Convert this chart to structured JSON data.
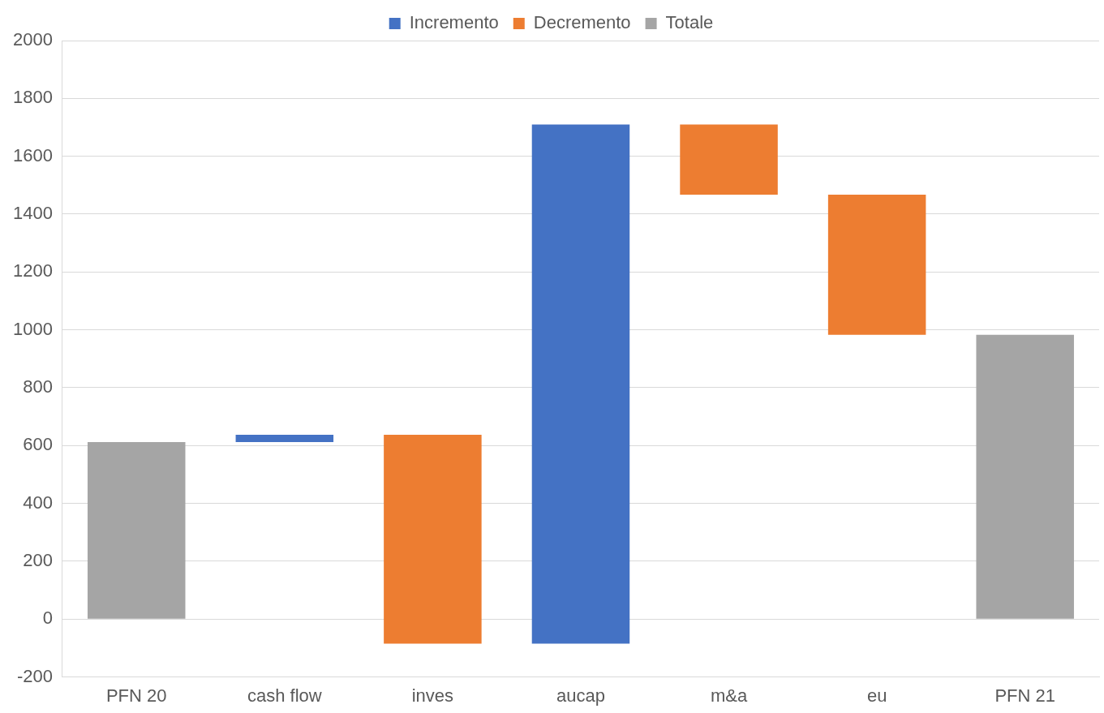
{
  "chart_data": {
    "type": "bar",
    "categories": [
      "PFN 20",
      "cash flow",
      "inves",
      "aucap",
      "m&a",
      "eu",
      "PFN 21"
    ],
    "series": [
      {
        "name": "Incremento",
        "color": "#4472c4",
        "values": [
          null,
          25,
          null,
          1795,
          null,
          null,
          null
        ],
        "base": [
          null,
          612,
          null,
          -85,
          null,
          null,
          null
        ]
      },
      {
        "name": "Decremento",
        "color": "#ed7d31",
        "values": [
          null,
          null,
          -722,
          null,
          -243,
          -484,
          null
        ],
        "base": [
          null,
          null,
          637,
          null,
          1710,
          1467,
          null
        ]
      },
      {
        "name": "Totale",
        "color": "#a5a5a5",
        "values": [
          612,
          null,
          null,
          null,
          null,
          null,
          983
        ],
        "base": [
          0,
          null,
          null,
          null,
          null,
          null,
          0
        ]
      }
    ],
    "ylim": [
      -200,
      2000
    ],
    "yticks": [
      -200,
      0,
      200,
      400,
      600,
      800,
      1000,
      1200,
      1400,
      1600,
      1800,
      2000
    ],
    "grid": "y",
    "legend": "top"
  }
}
